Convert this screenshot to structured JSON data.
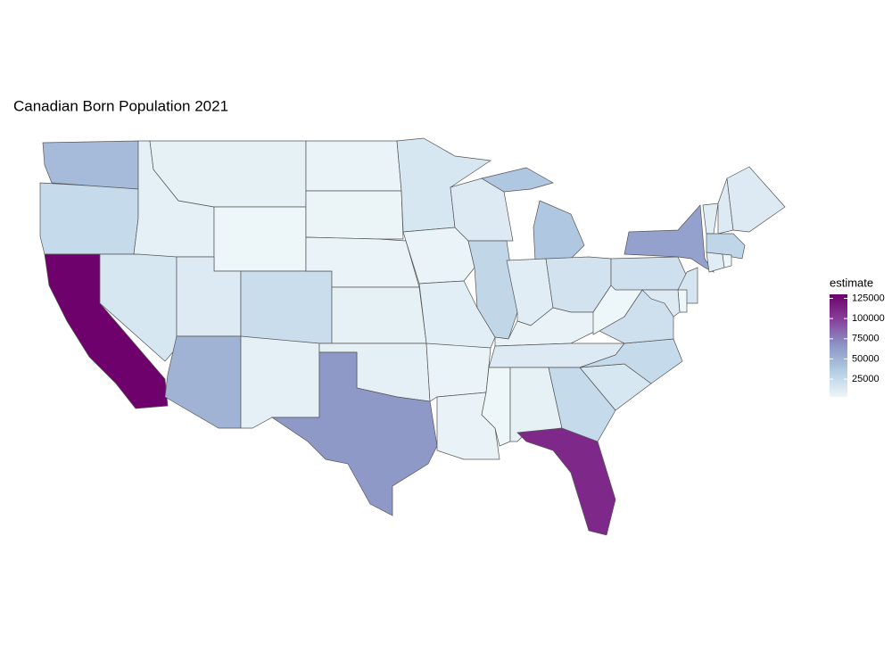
{
  "chart_data": {
    "type": "choropleth",
    "title": "Canadian Born Population 2021",
    "legend_title": "estimate",
    "values": [
      45000,
      25000,
      130000,
      15000,
      8000,
      7000,
      3000,
      12000,
      22000,
      50000,
      8000,
      5000,
      4000,
      5000,
      7000,
      8000,
      65000,
      15000,
      5000,
      9000,
      5000,
      6000,
      12000,
      27000,
      38000,
      10000,
      18000,
      6000,
      12000,
      3000,
      7000,
      25000,
      110000,
      15000,
      25000,
      20000,
      3000,
      20000,
      60000,
      10000,
      12000,
      12000,
      28000,
      10000,
      3000,
      16000,
      3000,
      12000
    ],
    "clim": [
      3000,
      130000
    ],
    "cticks": [
      25000,
      50000,
      75000,
      100000,
      125000
    ],
    "colors": [
      "#edf6f9",
      "#b3cde3",
      "#8c96c6",
      "#88419d",
      "#6e016b"
    ],
    "border_color": "#555555"
  }
}
